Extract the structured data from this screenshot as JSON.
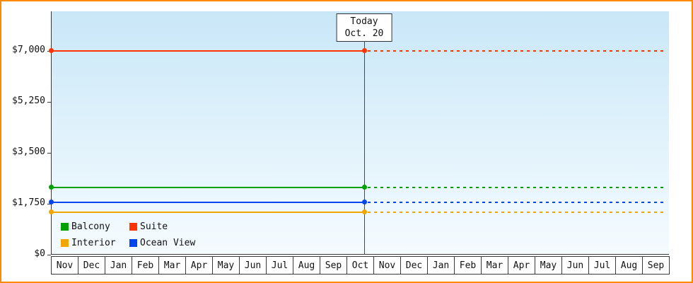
{
  "chart_data": {
    "type": "line",
    "title": "",
    "today_line1": "Today",
    "today_line2": "Oct. 20",
    "ylim": [
      0,
      8350
    ],
    "y_ticks": [
      {
        "label": "$7,000",
        "value": 7000
      },
      {
        "label": "$5,250",
        "value": 5250
      },
      {
        "label": "$3,500",
        "value": 3500
      },
      {
        "label": "$1,750",
        "value": 1750
      },
      {
        "label": "$0",
        "value": 0
      }
    ],
    "months": [
      "Nov",
      "Dec",
      "Jan",
      "Feb",
      "Mar",
      "Apr",
      "May",
      "Jun",
      "Jul",
      "Aug",
      "Sep",
      "Oct",
      "Nov",
      "Dec",
      "Jan",
      "Feb",
      "Mar",
      "Apr",
      "May",
      "Jun",
      "Jul",
      "Aug",
      "Sep"
    ],
    "today_month_index": 11,
    "today_fraction": 0.645,
    "series": [
      {
        "name": "Suite",
        "color": "#ff3300",
        "value": 7000
      },
      {
        "name": "Balcony",
        "color": "#00a000",
        "value": 2300
      },
      {
        "name": "Ocean View",
        "color": "#0044ee",
        "value": 1800
      },
      {
        "name": "Interior",
        "color": "#f0a500",
        "value": 1450
      }
    ],
    "legend": [
      {
        "name": "Balcony",
        "color": "#00a000"
      },
      {
        "name": "Suite",
        "color": "#ff3300"
      },
      {
        "name": "Interior",
        "color": "#f0a500"
      },
      {
        "name": "Ocean View",
        "color": "#0044ee"
      }
    ],
    "legend_position": "bottom-left",
    "grid": "off",
    "frame_border_color": "#ff8a00"
  }
}
